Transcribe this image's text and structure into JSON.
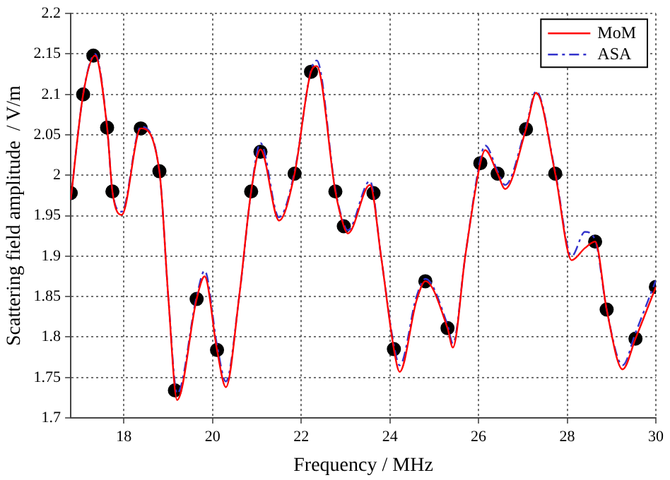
{
  "chart_data": {
    "type": "line",
    "xlabel": "Frequency / MHz",
    "ylabel": "Scattering field amplitude  / V/m",
    "xlim": [
      16.8,
      30
    ],
    "xticks": [
      18,
      20,
      22,
      24,
      26,
      28,
      30
    ],
    "ylim": [
      1.7,
      2.2
    ],
    "yticks": [
      1.7,
      1.75,
      1.8,
      1.85,
      1.9,
      1.95,
      2,
      2.05,
      2.1,
      2.15,
      2.2
    ],
    "grid": true,
    "legend": "top right",
    "marker": "none",
    "series": [
      {
        "name": "MoM",
        "color": "#ff0000",
        "line_style": "solid",
        "x": [
          16.8,
          17.08,
          17.35,
          17.62,
          17.74,
          17.95,
          18.38,
          18.8,
          19.0,
          19.2,
          19.64,
          19.82,
          20.1,
          20.3,
          20.6,
          20.87,
          21.08,
          21.5,
          21.85,
          22.22,
          22.35,
          22.77,
          22.96,
          23.05,
          23.55,
          23.8,
          24.09,
          24.22,
          24.6,
          24.8,
          25.3,
          25.42,
          25.7,
          26.04,
          26.15,
          26.43,
          26.6,
          27.07,
          27.3,
          27.73,
          28.1,
          28.4,
          28.63,
          28.89,
          29.25,
          29.54,
          30
        ],
        "values": [
          1.97,
          2.1,
          2.148,
          2.059,
          1.98,
          1.951,
          2.058,
          2.005,
          1.85,
          1.722,
          1.847,
          1.875,
          1.784,
          1.738,
          1.85,
          1.98,
          2.032,
          1.944,
          2.002,
          2.128,
          2.135,
          1.98,
          1.937,
          1.928,
          1.988,
          1.9,
          1.785,
          1.757,
          1.845,
          1.869,
          1.811,
          1.787,
          1.9,
          2.015,
          2.031,
          2.002,
          1.983,
          2.057,
          2.102,
          2.002,
          1.895,
          1.91,
          1.918,
          1.834,
          1.76,
          1.798,
          1.862
        ]
      },
      {
        "name": "ASA",
        "color": "#3333cc",
        "line_style": "dashed",
        "x": [
          16.8,
          17.08,
          17.35,
          17.62,
          17.74,
          17.95,
          18.38,
          18.8,
          19.0,
          19.2,
          19.64,
          19.82,
          20.1,
          20.3,
          20.6,
          20.87,
          21.08,
          21.5,
          21.85,
          22.22,
          22.35,
          22.77,
          22.96,
          23.05,
          23.55,
          23.8,
          24.09,
          24.22,
          24.6,
          24.8,
          25.3,
          25.42,
          25.7,
          26.04,
          26.15,
          26.43,
          26.6,
          27.07,
          27.3,
          27.73,
          28.1,
          28.4,
          28.63,
          28.89,
          29.25,
          29.54,
          30
        ],
        "values": [
          1.97,
          2.1,
          2.15,
          2.06,
          1.98,
          1.955,
          2.06,
          2.005,
          1.85,
          1.73,
          1.85,
          1.882,
          1.79,
          1.745,
          1.85,
          1.98,
          2.04,
          1.948,
          2.005,
          2.13,
          2.142,
          1.982,
          1.94,
          1.932,
          1.993,
          1.9,
          1.79,
          1.765,
          1.85,
          1.872,
          1.815,
          1.792,
          1.9,
          2.02,
          2.037,
          2.005,
          1.988,
          2.06,
          2.104,
          2.004,
          1.9,
          1.93,
          1.92,
          1.834,
          1.765,
          1.805,
          1.87
        ]
      },
      {
        "color": "#000000",
        "type": "scatter",
        "marker": "circle",
        "x": [
          16.8,
          17.08,
          17.31,
          17.62,
          17.74,
          18.38,
          18.8,
          19.15,
          19.64,
          20.1,
          20.87,
          21.08,
          21.85,
          22.22,
          22.77,
          22.96,
          23.63,
          24.09,
          24.8,
          25.3,
          26.04,
          26.43,
          27.07,
          27.73,
          28.63,
          28.89,
          29.54,
          30
        ],
        "values": [
          1.978,
          2.1,
          2.148,
          2.059,
          1.98,
          2.058,
          2.005,
          1.734,
          1.847,
          1.784,
          1.98,
          2.029,
          2.002,
          2.128,
          1.98,
          1.937,
          1.978,
          1.785,
          1.869,
          1.811,
          2.015,
          2.002,
          2.057,
          2.002,
          1.918,
          1.834,
          1.798,
          1.862
        ]
      }
    ]
  }
}
